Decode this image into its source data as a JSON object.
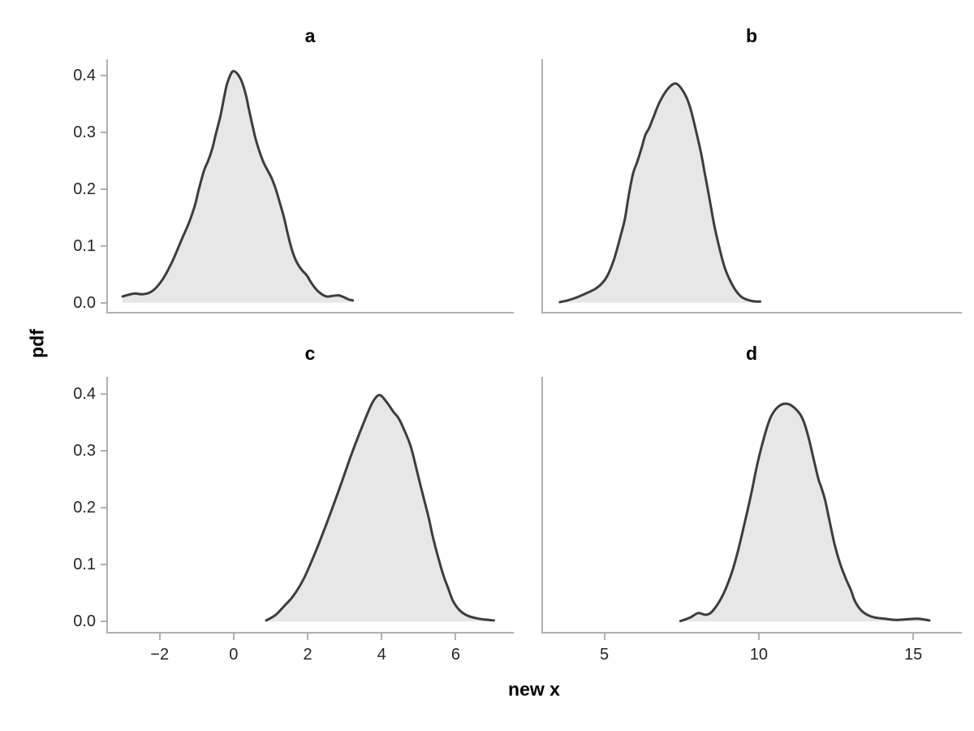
{
  "figure": {
    "background": "#ffffff"
  },
  "colors": {
    "line": "#3d3d3d",
    "fill": "#e7e7e7",
    "spine": "#b0b0b0",
    "tick_label": "#262626",
    "title": "#000000"
  },
  "chart_data": {
    "type": "area",
    "subtype": "kde-density-2x2-grid",
    "shared_xlabel": "new x",
    "shared_ylabel": "pdf",
    "grid": false,
    "legend_position": null,
    "panels": [
      {
        "title": "a",
        "row": 0,
        "col": 0,
        "xlim": [
          -3.44,
          7.57
        ],
        "ylim": [
          -0.019,
          0.429
        ],
        "xticks": [
          -2,
          0,
          2,
          4,
          6
        ],
        "xtick_labels": [
          "−2",
          "0",
          "2",
          "4",
          "6"
        ],
        "xtick_labels_visible": false,
        "xtick_marks_visible": false,
        "yticks": [
          0.0,
          0.1,
          0.2,
          0.3,
          0.4
        ],
        "ytick_labels": [
          "0.0",
          "0.1",
          "0.2",
          "0.3",
          "0.4"
        ],
        "ytick_labels_visible": true,
        "ytick_marks_visible": true,
        "peak": {
          "x": 0.0,
          "y": 0.41
        },
        "points": [
          [
            -3.0,
            0.011
          ],
          [
            -2.7,
            0.016
          ],
          [
            -2.44,
            0.015
          ],
          [
            -2.19,
            0.021
          ],
          [
            -1.93,
            0.04
          ],
          [
            -1.67,
            0.071
          ],
          [
            -1.42,
            0.109
          ],
          [
            -1.2,
            0.142
          ],
          [
            -1.05,
            0.171
          ],
          [
            -0.94,
            0.2
          ],
          [
            -0.8,
            0.233
          ],
          [
            -0.69,
            0.25
          ],
          [
            -0.58,
            0.271
          ],
          [
            -0.47,
            0.3
          ],
          [
            -0.36,
            0.328
          ],
          [
            -0.25,
            0.364
          ],
          [
            -0.18,
            0.385
          ],
          [
            -0.07,
            0.404
          ],
          [
            0.01,
            0.408
          ],
          [
            0.12,
            0.402
          ],
          [
            0.23,
            0.388
          ],
          [
            0.34,
            0.364
          ],
          [
            0.41,
            0.342
          ],
          [
            0.52,
            0.309
          ],
          [
            0.59,
            0.29
          ],
          [
            0.7,
            0.266
          ],
          [
            0.81,
            0.247
          ],
          [
            0.92,
            0.233
          ],
          [
            1.03,
            0.219
          ],
          [
            1.14,
            0.2
          ],
          [
            1.25,
            0.176
          ],
          [
            1.36,
            0.15
          ],
          [
            1.47,
            0.119
          ],
          [
            1.58,
            0.092
          ],
          [
            1.7,
            0.072
          ],
          [
            1.84,
            0.058
          ],
          [
            1.98,
            0.048
          ],
          [
            2.1,
            0.035
          ],
          [
            2.24,
            0.023
          ],
          [
            2.38,
            0.015
          ],
          [
            2.52,
            0.011
          ],
          [
            2.68,
            0.012
          ],
          [
            2.83,
            0.013
          ],
          [
            2.97,
            0.01
          ],
          [
            3.1,
            0.006
          ],
          [
            3.22,
            0.004
          ]
        ]
      },
      {
        "title": "b",
        "row": 0,
        "col": 1,
        "xlim": [
          2.96,
          16.57
        ],
        "ylim": [
          -0.019,
          0.429
        ],
        "xticks": [
          5,
          10,
          15
        ],
        "xtick_labels": [
          "5",
          "10",
          "15"
        ],
        "xtick_labels_visible": false,
        "xtick_marks_visible": false,
        "yticks": [
          0.0,
          0.1,
          0.2,
          0.3,
          0.4
        ],
        "ytick_labels": [
          "0.0",
          "0.1",
          "0.2",
          "0.3",
          "0.4"
        ],
        "ytick_labels_visible": false,
        "ytick_marks_visible": false,
        "peak": {
          "x": 7.3,
          "y": 0.386
        },
        "points": [
          [
            3.56,
            0.001
          ],
          [
            3.8,
            0.004
          ],
          [
            4.09,
            0.009
          ],
          [
            4.39,
            0.016
          ],
          [
            4.69,
            0.024
          ],
          [
            4.9,
            0.033
          ],
          [
            5.09,
            0.047
          ],
          [
            5.31,
            0.076
          ],
          [
            5.53,
            0.119
          ],
          [
            5.66,
            0.147
          ],
          [
            5.79,
            0.19
          ],
          [
            5.93,
            0.228
          ],
          [
            6.06,
            0.248
          ],
          [
            6.2,
            0.272
          ],
          [
            6.32,
            0.295
          ],
          [
            6.45,
            0.308
          ],
          [
            6.58,
            0.326
          ],
          [
            6.79,
            0.354
          ],
          [
            7.07,
            0.378
          ],
          [
            7.33,
            0.386
          ],
          [
            7.59,
            0.369
          ],
          [
            7.77,
            0.345
          ],
          [
            7.94,
            0.309
          ],
          [
            8.12,
            0.266
          ],
          [
            8.25,
            0.228
          ],
          [
            8.38,
            0.19
          ],
          [
            8.55,
            0.138
          ],
          [
            8.73,
            0.095
          ],
          [
            8.9,
            0.061
          ],
          [
            9.08,
            0.038
          ],
          [
            9.26,
            0.021
          ],
          [
            9.47,
            0.009
          ],
          [
            9.78,
            0.003
          ],
          [
            10.04,
            0.002
          ]
        ]
      },
      {
        "title": "c",
        "row": 1,
        "col": 0,
        "xlim": [
          -3.44,
          7.57
        ],
        "ylim": [
          -0.021,
          0.43
        ],
        "xticks": [
          -2,
          0,
          2,
          4,
          6
        ],
        "xtick_labels": [
          "−2",
          "0",
          "2",
          "4",
          "6"
        ],
        "xtick_labels_visible": true,
        "xtick_marks_visible": true,
        "yticks": [
          0.0,
          0.1,
          0.2,
          0.3,
          0.4
        ],
        "ytick_labels": [
          "0.0",
          "0.1",
          "0.2",
          "0.3",
          "0.4"
        ],
        "ytick_labels_visible": true,
        "ytick_marks_visible": true,
        "peak": {
          "x": 3.95,
          "y": 0.4
        },
        "points": [
          [
            0.88,
            0.002
          ],
          [
            1.14,
            0.012
          ],
          [
            1.39,
            0.029
          ],
          [
            1.61,
            0.045
          ],
          [
            1.9,
            0.076
          ],
          [
            2.19,
            0.119
          ],
          [
            2.45,
            0.162
          ],
          [
            2.67,
            0.2
          ],
          [
            2.92,
            0.245
          ],
          [
            3.14,
            0.286
          ],
          [
            3.36,
            0.324
          ],
          [
            3.58,
            0.36
          ],
          [
            3.76,
            0.386
          ],
          [
            3.94,
            0.398
          ],
          [
            4.13,
            0.386
          ],
          [
            4.31,
            0.369
          ],
          [
            4.46,
            0.357
          ],
          [
            4.6,
            0.338
          ],
          [
            4.79,
            0.307
          ],
          [
            4.97,
            0.26
          ],
          [
            5.12,
            0.221
          ],
          [
            5.27,
            0.183
          ],
          [
            5.38,
            0.15
          ],
          [
            5.53,
            0.112
          ],
          [
            5.68,
            0.079
          ],
          [
            5.79,
            0.06
          ],
          [
            5.93,
            0.036
          ],
          [
            6.12,
            0.019
          ],
          [
            6.34,
            0.01
          ],
          [
            6.63,
            0.005
          ],
          [
            6.89,
            0.003
          ],
          [
            7.03,
            0.002
          ]
        ]
      },
      {
        "title": "d",
        "row": 1,
        "col": 1,
        "xlim": [
          2.96,
          16.57
        ],
        "ylim": [
          -0.021,
          0.43
        ],
        "xticks": [
          5,
          10,
          15
        ],
        "xtick_labels": [
          "5",
          "10",
          "15"
        ],
        "xtick_labels_visible": true,
        "xtick_marks_visible": true,
        "yticks": [
          0.0,
          0.1,
          0.2,
          0.3,
          0.4
        ],
        "ytick_labels": [
          "0.0",
          "0.1",
          "0.2",
          "0.3",
          "0.4"
        ],
        "ytick_labels_visible": false,
        "ytick_marks_visible": false,
        "peak": {
          "x": 11.0,
          "y": 0.382
        },
        "points": [
          [
            7.46,
            0.001
          ],
          [
            7.77,
            0.007
          ],
          [
            8.03,
            0.015
          ],
          [
            8.29,
            0.012
          ],
          [
            8.51,
            0.019
          ],
          [
            8.82,
            0.045
          ],
          [
            9.08,
            0.079
          ],
          [
            9.3,
            0.119
          ],
          [
            9.52,
            0.169
          ],
          [
            9.74,
            0.221
          ],
          [
            9.96,
            0.279
          ],
          [
            10.18,
            0.326
          ],
          [
            10.39,
            0.36
          ],
          [
            10.66,
            0.379
          ],
          [
            10.96,
            0.382
          ],
          [
            11.27,
            0.369
          ],
          [
            11.45,
            0.352
          ],
          [
            11.62,
            0.321
          ],
          [
            11.8,
            0.279
          ],
          [
            11.93,
            0.25
          ],
          [
            12.02,
            0.236
          ],
          [
            12.15,
            0.212
          ],
          [
            12.28,
            0.179
          ],
          [
            12.45,
            0.136
          ],
          [
            12.63,
            0.102
          ],
          [
            12.81,
            0.076
          ],
          [
            12.98,
            0.055
          ],
          [
            13.11,
            0.036
          ],
          [
            13.29,
            0.021
          ],
          [
            13.51,
            0.012
          ],
          [
            13.77,
            0.007
          ],
          [
            14.08,
            0.005
          ],
          [
            14.43,
            0.003
          ],
          [
            14.78,
            0.004
          ],
          [
            15.13,
            0.005
          ],
          [
            15.43,
            0.003
          ],
          [
            15.52,
            0.002
          ]
        ]
      }
    ]
  }
}
